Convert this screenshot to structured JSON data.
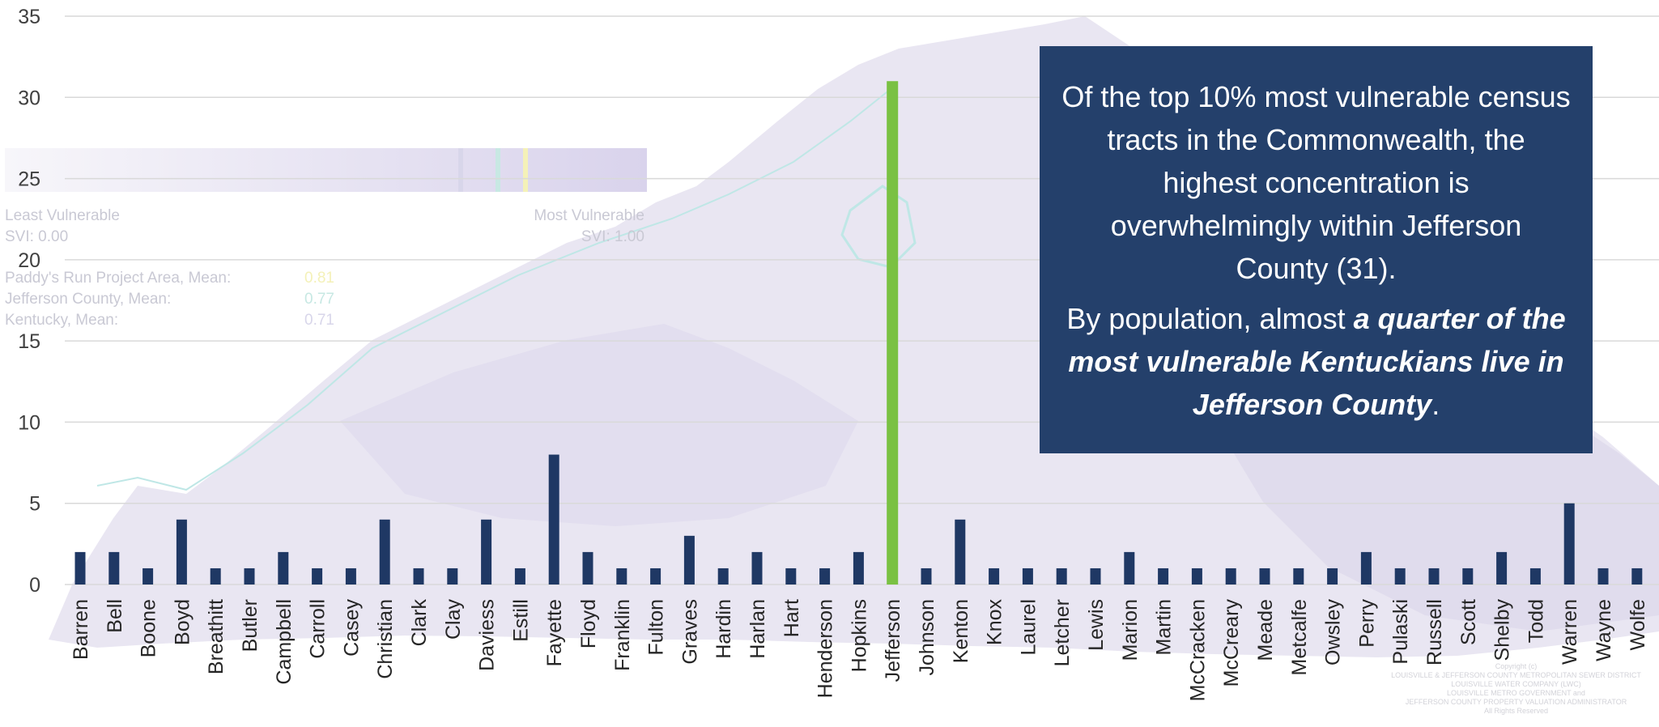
{
  "chart_data": {
    "type": "bar",
    "title": "",
    "xlabel": "",
    "ylabel": "",
    "ylim": [
      0,
      35
    ],
    "yticks": [
      0,
      5,
      10,
      15,
      20,
      25,
      30,
      35
    ],
    "grid": true,
    "highlight_category": "Jefferson",
    "bar_color": "#1f3864",
    "highlight_color": "#7ac143",
    "categories": [
      "Barren",
      "Bell",
      "Boone",
      "Boyd",
      "Breathitt",
      "Butler",
      "Campbell",
      "Carroll",
      "Casey",
      "Christian",
      "Clark",
      "Clay",
      "Daviess",
      "Estill",
      "Fayette",
      "Floyd",
      "Franklin",
      "Fulton",
      "Graves",
      "Hardin",
      "Harlan",
      "Hart",
      "Henderson",
      "Hopkins",
      "Jefferson",
      "Johnson",
      "Kenton",
      "Knox",
      "Laurel",
      "Letcher",
      "Lewis",
      "Marion",
      "Martin",
      "McCracken",
      "McCreary",
      "Meade",
      "Metcalfe",
      "Owsley",
      "Perry",
      "Pulaski",
      "Russell",
      "Scott",
      "Shelby",
      "Todd",
      "Warren",
      "Wayne",
      "Wolfe"
    ],
    "values": [
      2,
      2,
      1,
      4,
      1,
      1,
      2,
      1,
      1,
      4,
      1,
      1,
      4,
      1,
      8,
      2,
      1,
      1,
      3,
      1,
      2,
      1,
      1,
      2,
      31,
      1,
      4,
      1,
      1,
      1,
      1,
      2,
      1,
      1,
      1,
      1,
      1,
      1,
      2,
      1,
      1,
      1,
      2,
      1,
      5,
      1,
      1
    ]
  },
  "callout": {
    "line1": "Of the top 10% most vulnerable census tracts in the Commonwealth, the highest concentration is overwhelmingly within Jefferson County (31).",
    "line2_pre": "By population, almost ",
    "line2_emph": "a quarter of the most vulnerable Kentuckians live in Jefferson County",
    "line2_post": "."
  },
  "legend": {
    "least_label": "Least Vulnerable",
    "least_value": "SVI: 0.00",
    "most_label": "Most Vulnerable",
    "most_value": "SVI: 1.00",
    "rows": [
      {
        "label": "Paddy's Run Project Area, Mean:",
        "value": "0.81",
        "color": "#f4f1b8"
      },
      {
        "label": "Jefferson County, Mean:",
        "value": "0.77",
        "color": "#c7e8e3"
      },
      {
        "label": "Kentucky, Mean:",
        "value": "0.71",
        "color": "#d8d6ea"
      }
    ]
  },
  "copyright": {
    "lines": [
      "Copyright (c)",
      "LOUISVILLE & JEFFERSON COUNTY METROPOLITAN SEWER DISTRICT",
      "LOUISVILLE WATER COMPANY (LWC)",
      "LOUISVILLE METRO GOVERNMENT and",
      "JEFFERSON COUNTY PROPERTY VALUATION ADMINISTRATOR",
      "All Rights Reserved"
    ]
  }
}
